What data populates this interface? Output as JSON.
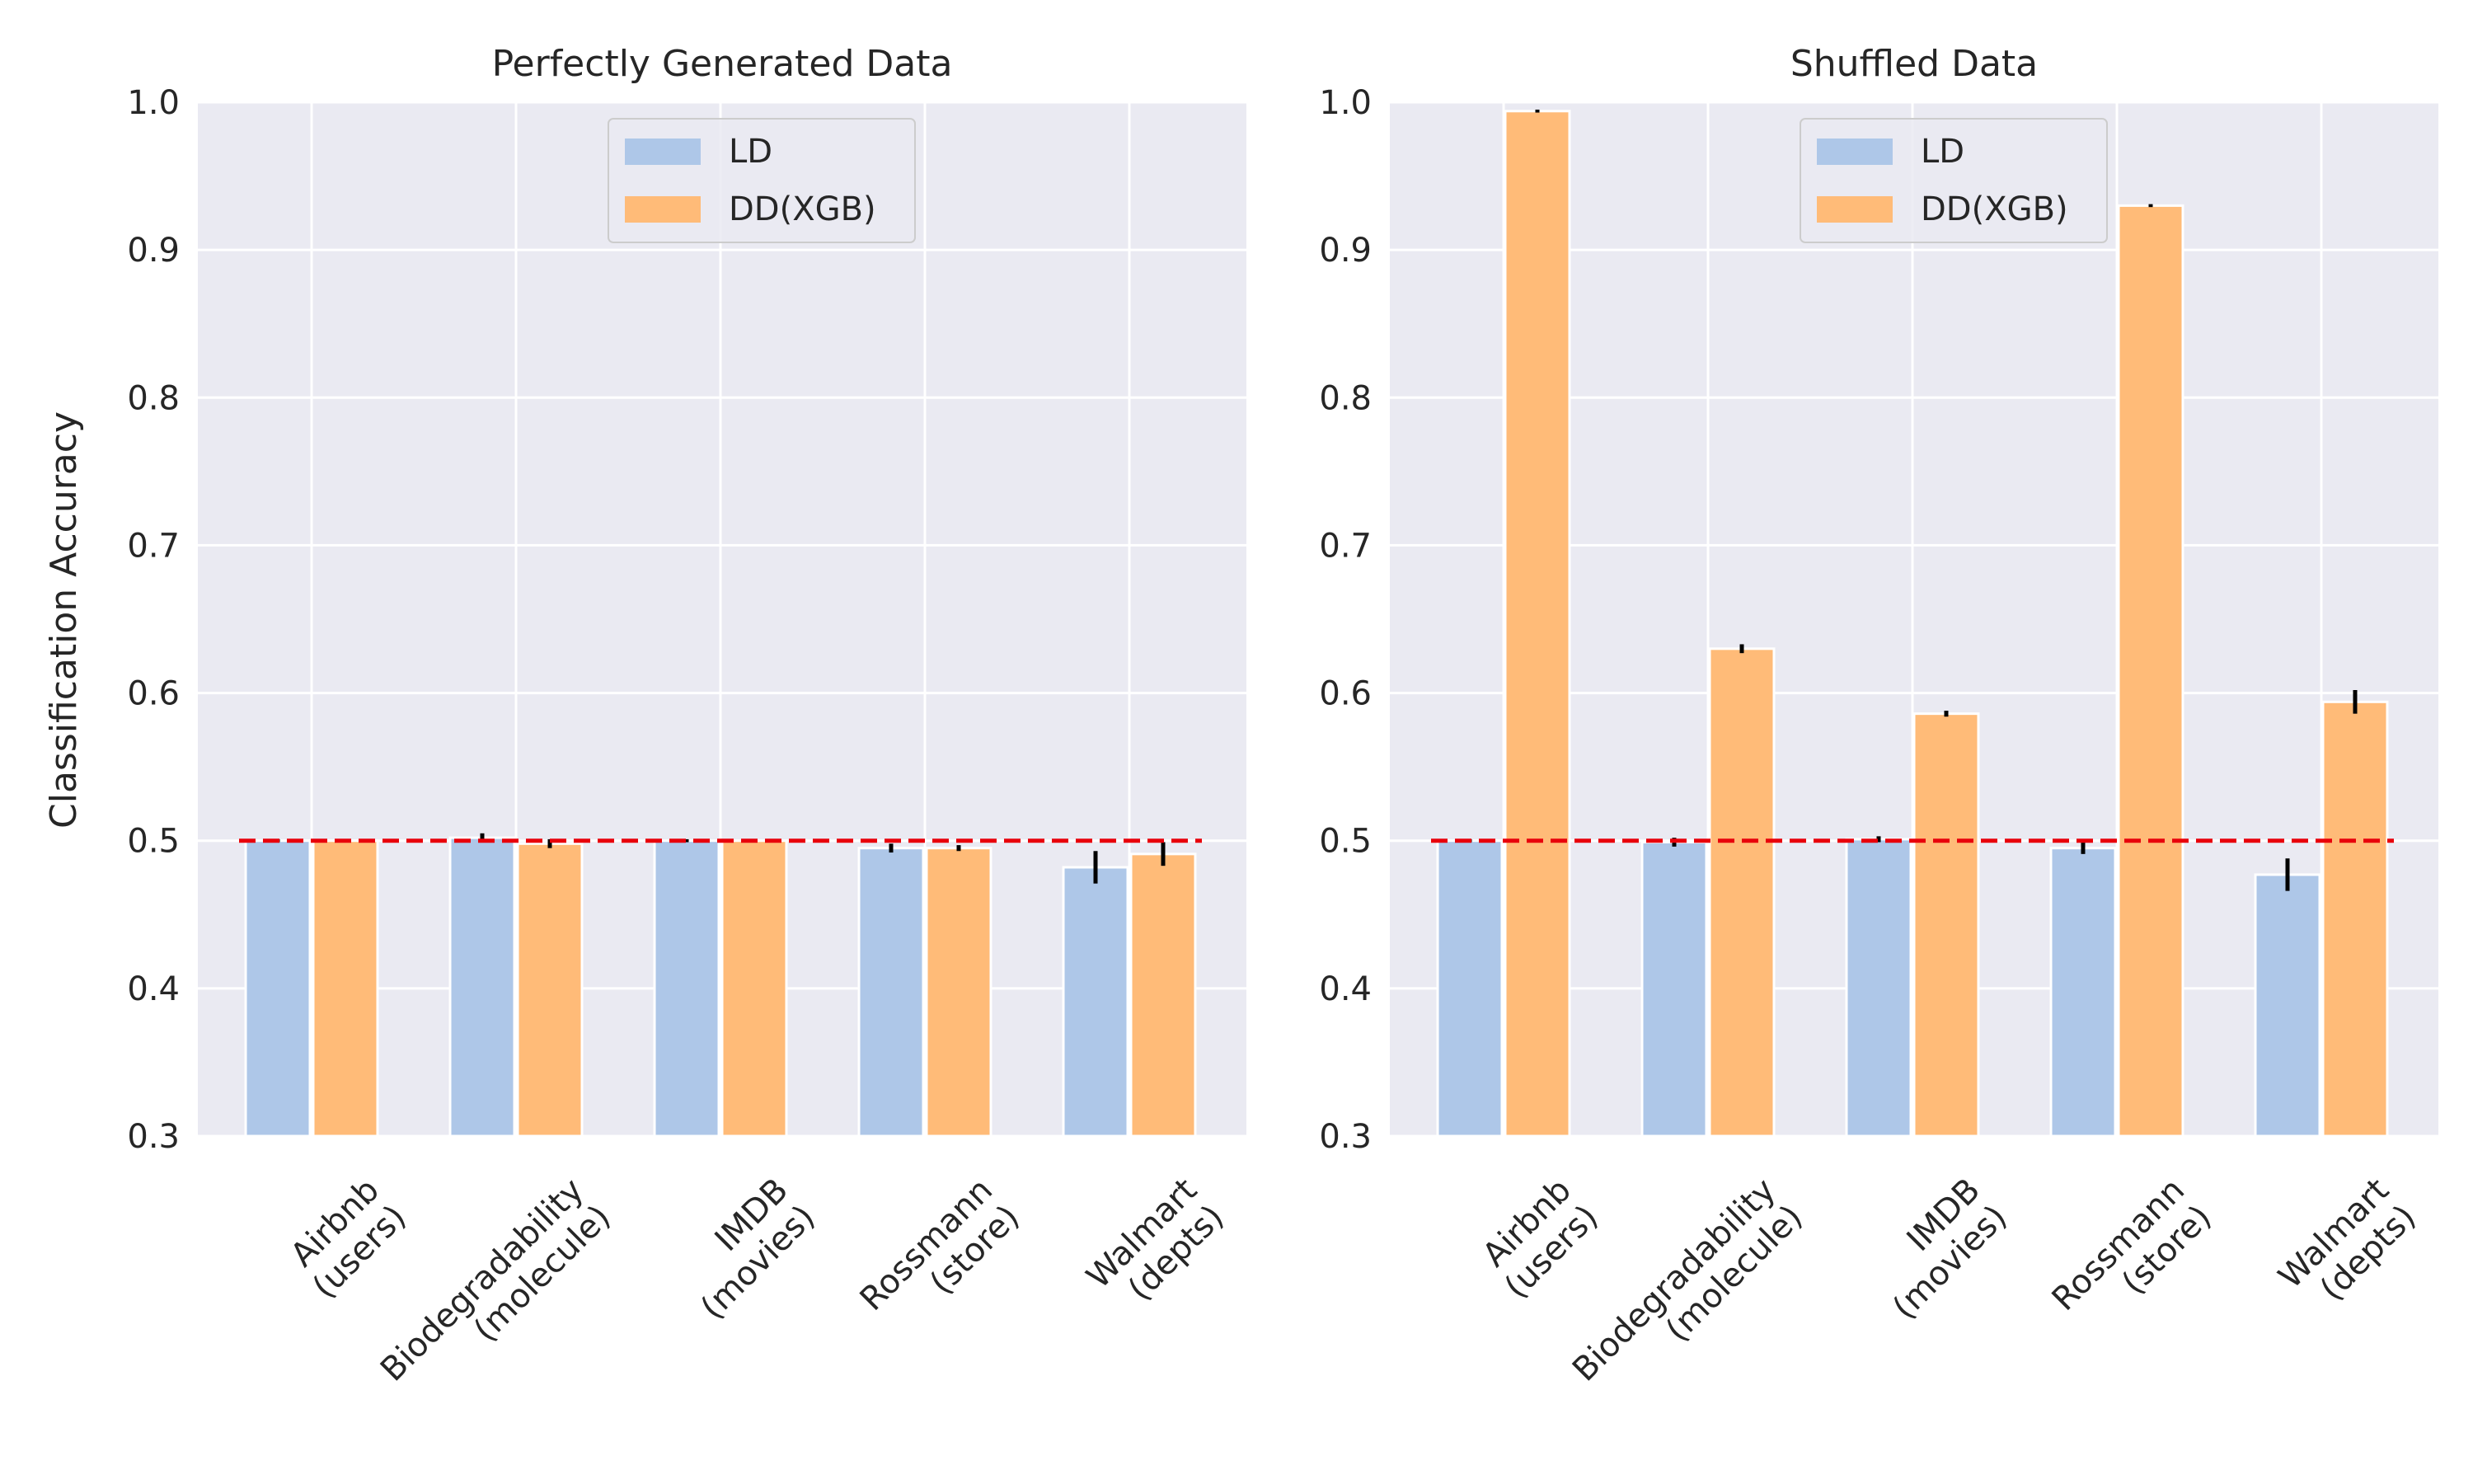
{
  "figure": {
    "ylabel": "Classification Accuracy"
  },
  "chart_data": [
    {
      "type": "bar",
      "title": "Perfectly Generated Data",
      "xlabel": "",
      "ylabel": "Classification Accuracy",
      "ylim": [
        0.3,
        1.0
      ],
      "yticks": [
        "0.3",
        "0.4",
        "0.5",
        "0.6",
        "0.7",
        "0.8",
        "0.9",
        "1.0"
      ],
      "grid": true,
      "legend_position": "top-center",
      "categories": [
        [
          "Airbnb",
          "(users)"
        ],
        [
          "Biodegradability",
          "(molecule)"
        ],
        [
          "IMDB",
          "(movies)"
        ],
        [
          "Rossmann",
          "(store)"
        ],
        [
          "Walmart",
          "(depts)"
        ]
      ],
      "series": [
        {
          "name": "LD",
          "color": "#aec7e8",
          "values": [
            0.5,
            0.502,
            0.5,
            0.495,
            0.482
          ],
          "errors": [
            0.001,
            0.003,
            0.001,
            0.003,
            0.011
          ]
        },
        {
          "name": "DD(XGB)",
          "color": "#ffbb78",
          "values": [
            0.5,
            0.498,
            0.5,
            0.495,
            0.491
          ],
          "errors": [
            0.001,
            0.003,
            0.001,
            0.002,
            0.008
          ]
        }
      ],
      "reference_line": {
        "y": 0.5,
        "color": "#e8000b",
        "style": "dashed"
      }
    },
    {
      "type": "bar",
      "title": "Shuffled Data",
      "xlabel": "",
      "ylabel": "",
      "ylim": [
        0.3,
        1.0
      ],
      "yticks": [
        "0.3",
        "0.4",
        "0.5",
        "0.6",
        "0.7",
        "0.8",
        "0.9",
        "1.0"
      ],
      "grid": true,
      "legend_position": "top-center",
      "categories": [
        [
          "Airbnb",
          "(users)"
        ],
        [
          "Biodegradability",
          "(molecule)"
        ],
        [
          "IMDB",
          "(movies)"
        ],
        [
          "Rossmann",
          "(store)"
        ],
        [
          "Walmart",
          "(depts)"
        ]
      ],
      "series": [
        {
          "name": "LD",
          "color": "#aec7e8",
          "values": [
            0.5,
            0.499,
            0.501,
            0.495,
            0.477
          ],
          "errors": [
            0.001,
            0.003,
            0.002,
            0.004,
            0.011
          ]
        },
        {
          "name": "DD(XGB)",
          "color": "#ffbb78",
          "values": [
            0.994,
            0.63,
            0.586,
            0.93,
            0.594
          ],
          "errors": [
            0.001,
            0.003,
            0.002,
            0.001,
            0.008
          ]
        }
      ],
      "reference_line": {
        "y": 0.5,
        "color": "#e8000b",
        "style": "dashed"
      }
    }
  ]
}
